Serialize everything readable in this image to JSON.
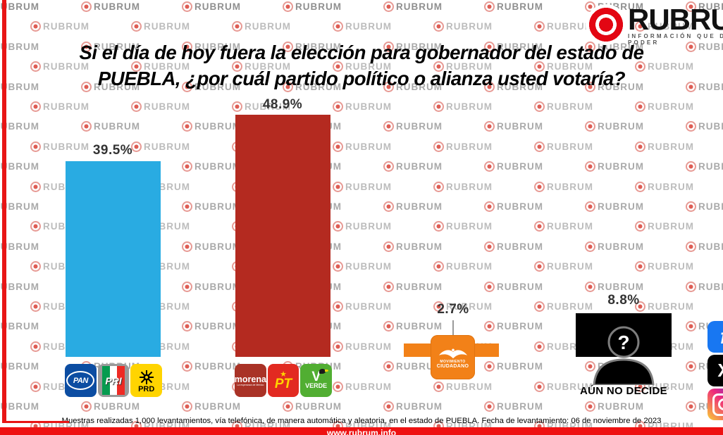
{
  "brand": {
    "name": "RUBRUM",
    "tagline": "INFORMACIÓN QUE DA PODER",
    "watermark_text": "RUBRUM",
    "accent_red": "#E30613"
  },
  "title": {
    "line1": "Si el día de hoy fuera la elección para gobernador del estado de",
    "line2": "PUEBLA, ¿por cuál  partido político o alianza usted votaría?"
  },
  "chart_data": {
    "type": "bar",
    "title": "Si el día de hoy fuera la elección para gobernador del estado de PUEBLA, ¿por cuál partido político o alianza usted votaría?",
    "categories": [
      "PAN / PRI / PRD",
      "MORENA / PT / VERDE",
      "MOVIMIENTO CIUDADANO",
      "AÚN NO DECIDE"
    ],
    "values": [
      39.5,
      48.9,
      2.7,
      8.8
    ],
    "value_labels": [
      "39.5%",
      "48.9%",
      "2.7%",
      "8.8%"
    ],
    "bar_colors": [
      "#29ABE2",
      "#B42A20",
      "#F28118",
      "#000000"
    ],
    "xlabel": "",
    "ylabel": "",
    "ylim": [
      0,
      55
    ],
    "grid": false,
    "legend": "none",
    "orientation": "vertical"
  },
  "party_logos": {
    "pan": "PAN",
    "pri": "PRI",
    "prd": "PRD",
    "morena": "morena",
    "morena_tagline": "La esperanza de México",
    "pt": "PT",
    "pt_star": "★",
    "verde_v": "V",
    "verde": "VERDE",
    "mc_line1": "MOVIMIENTO",
    "mc_line2": "CIUDADANO"
  },
  "undecided": {
    "label": "AÚN NO DECIDE",
    "question_mark": "?"
  },
  "footer": {
    "methodology": "Muestras realizadas 1,000 levantamientos, vía telefónica, de manera automática y aleatoria, en el estado de PUEBLA. Fecha de levantamiento: 06 de noviembre de 2023",
    "website": "www.rubrum.info"
  },
  "social": {
    "facebook_glyph": "f",
    "x_glyph": "X"
  }
}
